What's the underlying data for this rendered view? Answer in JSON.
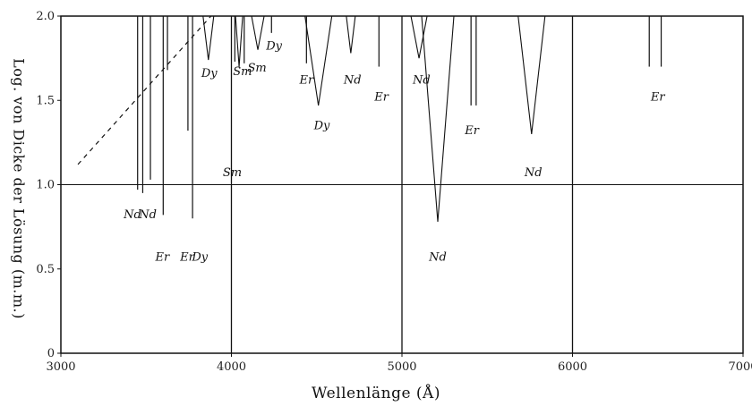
{
  "chart_data": {
    "type": "absorption-line-diagram",
    "xlabel": "Wellenlänge (Å)",
    "ylabel": "Log. von Dicke der Lösung (m.m.)",
    "xlim": [
      3000,
      7000
    ],
    "ylim": [
      0,
      2.0
    ],
    "x_ticks": [
      3000,
      4000,
      5000,
      6000,
      7000
    ],
    "y_ticks": [
      {
        "value": 0,
        "label": "0"
      },
      {
        "value": 0.5,
        "label": "0.5"
      },
      {
        "value": 1.0,
        "label": "1.0"
      },
      {
        "value": 1.5,
        "label": "1.5"
      },
      {
        "value": 2.0,
        "label": "2.0"
      }
    ],
    "gridlines_x": [
      4000,
      5000,
      6000
    ],
    "gridlines_y": [
      1.0
    ],
    "dashed_limit_line": {
      "from": {
        "x": 3100,
        "y": 1.12
      },
      "to": {
        "x": 3880,
        "y": 2.0
      }
    },
    "lines": [
      {
        "x": 3450,
        "y": 0.97,
        "w": 0
      },
      {
        "x": 3480,
        "y": 0.95,
        "w": 0
      },
      {
        "x": 3525,
        "y": 1.03,
        "w": 0
      },
      {
        "x": 3600,
        "y": 0.82,
        "w": 0
      },
      {
        "x": 3625,
        "y": 1.68,
        "w": 0
      },
      {
        "x": 3745,
        "y": 1.32,
        "w": 0
      },
      {
        "x": 3772,
        "y": 0.8,
        "w": 0
      },
      {
        "x": 3865,
        "y": 1.74,
        "w": 12
      },
      {
        "x": 4020,
        "y": 1.73,
        "w": 0
      },
      {
        "x": 4045,
        "y": 1.7,
        "w": 8
      },
      {
        "x": 4075,
        "y": 1.72,
        "w": 0
      },
      {
        "x": 4155,
        "y": 1.8,
        "w": 14
      },
      {
        "x": 4235,
        "y": 1.9,
        "w": 0
      },
      {
        "x": 4440,
        "y": 1.72,
        "w": 0
      },
      {
        "x": 4510,
        "y": 1.47,
        "w": 30
      },
      {
        "x": 4700,
        "y": 1.78,
        "w": 10
      },
      {
        "x": 4865,
        "y": 1.7,
        "w": 0
      },
      {
        "x": 5100,
        "y": 1.75,
        "w": 18
      },
      {
        "x": 5210,
        "y": 0.78,
        "w": 36
      },
      {
        "x": 5405,
        "y": 1.47,
        "w": 0
      },
      {
        "x": 5435,
        "y": 1.47,
        "w": 0
      },
      {
        "x": 5760,
        "y": 1.3,
        "w": 30
      },
      {
        "x": 6450,
        "y": 1.7,
        "w": 0
      },
      {
        "x": 6520,
        "y": 1.7,
        "w": 0
      }
    ],
    "labels": [
      {
        "text": "Nd",
        "x": 3420,
        "y": 0.8
      },
      {
        "text": "Nd",
        "x": 3510,
        "y": 0.8
      },
      {
        "text": "Er",
        "x": 3595,
        "y": 0.55
      },
      {
        "text": "Er",
        "x": 3740,
        "y": 0.55
      },
      {
        "text": "Dy",
        "x": 3815,
        "y": 0.55
      },
      {
        "text": "Dy",
        "x": 3870,
        "y": 1.64
      },
      {
        "text": "Sm",
        "x": 4005,
        "y": 1.05
      },
      {
        "text": "Sm",
        "x": 4065,
        "y": 1.65
      },
      {
        "text": "Sm",
        "x": 4150,
        "y": 1.67
      },
      {
        "text": "Dy",
        "x": 4250,
        "y": 1.8
      },
      {
        "text": "Er",
        "x": 4440,
        "y": 1.6
      },
      {
        "text": "Dy",
        "x": 4530,
        "y": 1.33
      },
      {
        "text": "Nd",
        "x": 4710,
        "y": 1.6
      },
      {
        "text": "Er",
        "x": 4880,
        "y": 1.5
      },
      {
        "text": "Nd",
        "x": 5115,
        "y": 1.6
      },
      {
        "text": "Nd",
        "x": 5210,
        "y": 0.55
      },
      {
        "text": "Er",
        "x": 5410,
        "y": 1.3
      },
      {
        "text": "Nd",
        "x": 5770,
        "y": 1.05
      },
      {
        "text": "Er",
        "x": 6500,
        "y": 1.5
      }
    ]
  }
}
